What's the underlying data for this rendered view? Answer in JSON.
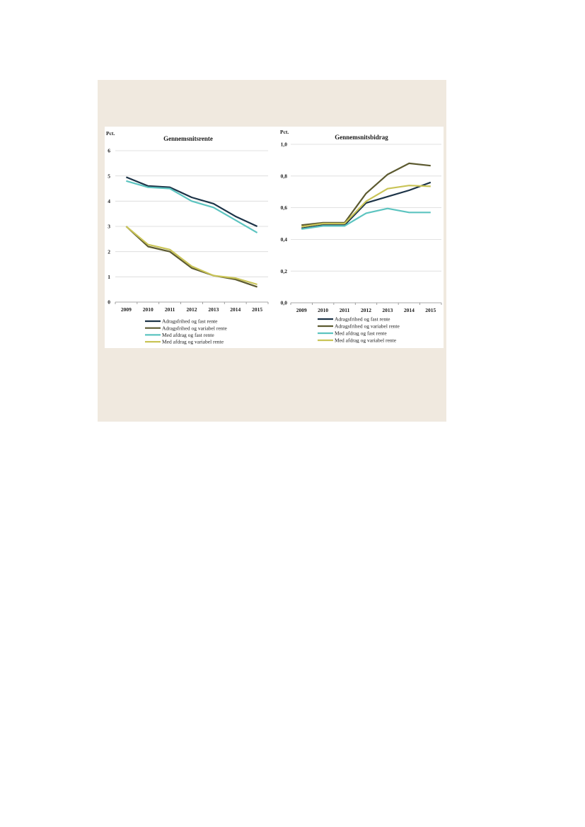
{
  "chart_data": [
    {
      "type": "line",
      "title": "Gennemsnitsrente",
      "ylabel": "Pct.",
      "categories": [
        "2009",
        "2010",
        "2011",
        "2012",
        "2013",
        "2014",
        "2015"
      ],
      "ylim": [
        0,
        6
      ],
      "yticks": [
        "0",
        "1",
        "2",
        "3",
        "4",
        "5",
        "6"
      ],
      "grid": true,
      "legend_position": "bottom",
      "series": [
        {
          "name": "Adragsfrihed og fast rente",
          "color": "#1c3347",
          "values": [
            4.95,
            4.6,
            4.55,
            4.15,
            3.9,
            3.4,
            3.0
          ]
        },
        {
          "name": "Adragsfrihed og variabel rente",
          "color": "#5c5a30",
          "values": [
            3.0,
            2.2,
            2.0,
            1.35,
            1.05,
            0.9,
            0.6
          ]
        },
        {
          "name": "Med afdrag og fast rente",
          "color": "#5cc4c0",
          "values": [
            4.8,
            4.55,
            4.5,
            4.0,
            3.75,
            3.25,
            2.75
          ]
        },
        {
          "name": "Med afdrag og variabel rente",
          "color": "#c9c457",
          "values": [
            3.0,
            2.28,
            2.08,
            1.42,
            1.05,
            0.95,
            0.7
          ]
        }
      ]
    },
    {
      "type": "line",
      "title": "Gennemsnitsbidrag",
      "ylabel": "Pct.",
      "categories": [
        "2009",
        "2010",
        "2011",
        "2012",
        "2013",
        "2014",
        "2015"
      ],
      "ylim": [
        0,
        1.0
      ],
      "yticks": [
        "0,0",
        "0,2",
        "0,4",
        "0,6",
        "0,8",
        "1,0"
      ],
      "grid": true,
      "legend_position": "bottom",
      "series": [
        {
          "name": "Adragsfrihed og fast rente",
          "color": "#1c3347",
          "values": [
            0.47,
            0.49,
            0.49,
            0.63,
            0.67,
            0.71,
            0.76
          ]
        },
        {
          "name": "Adragsfrihed og variabel rente",
          "color": "#5c5a30",
          "values": [
            0.49,
            0.505,
            0.505,
            0.69,
            0.81,
            0.88,
            0.865
          ]
        },
        {
          "name": "Med afdrag og fast rente",
          "color": "#5cc4c0",
          "values": [
            0.465,
            0.485,
            0.485,
            0.565,
            0.595,
            0.57,
            0.57
          ]
        },
        {
          "name": "Med afdrag og variabel rente",
          "color": "#c9c457",
          "values": [
            0.48,
            0.5,
            0.5,
            0.64,
            0.72,
            0.74,
            0.735
          ]
        }
      ]
    }
  ]
}
